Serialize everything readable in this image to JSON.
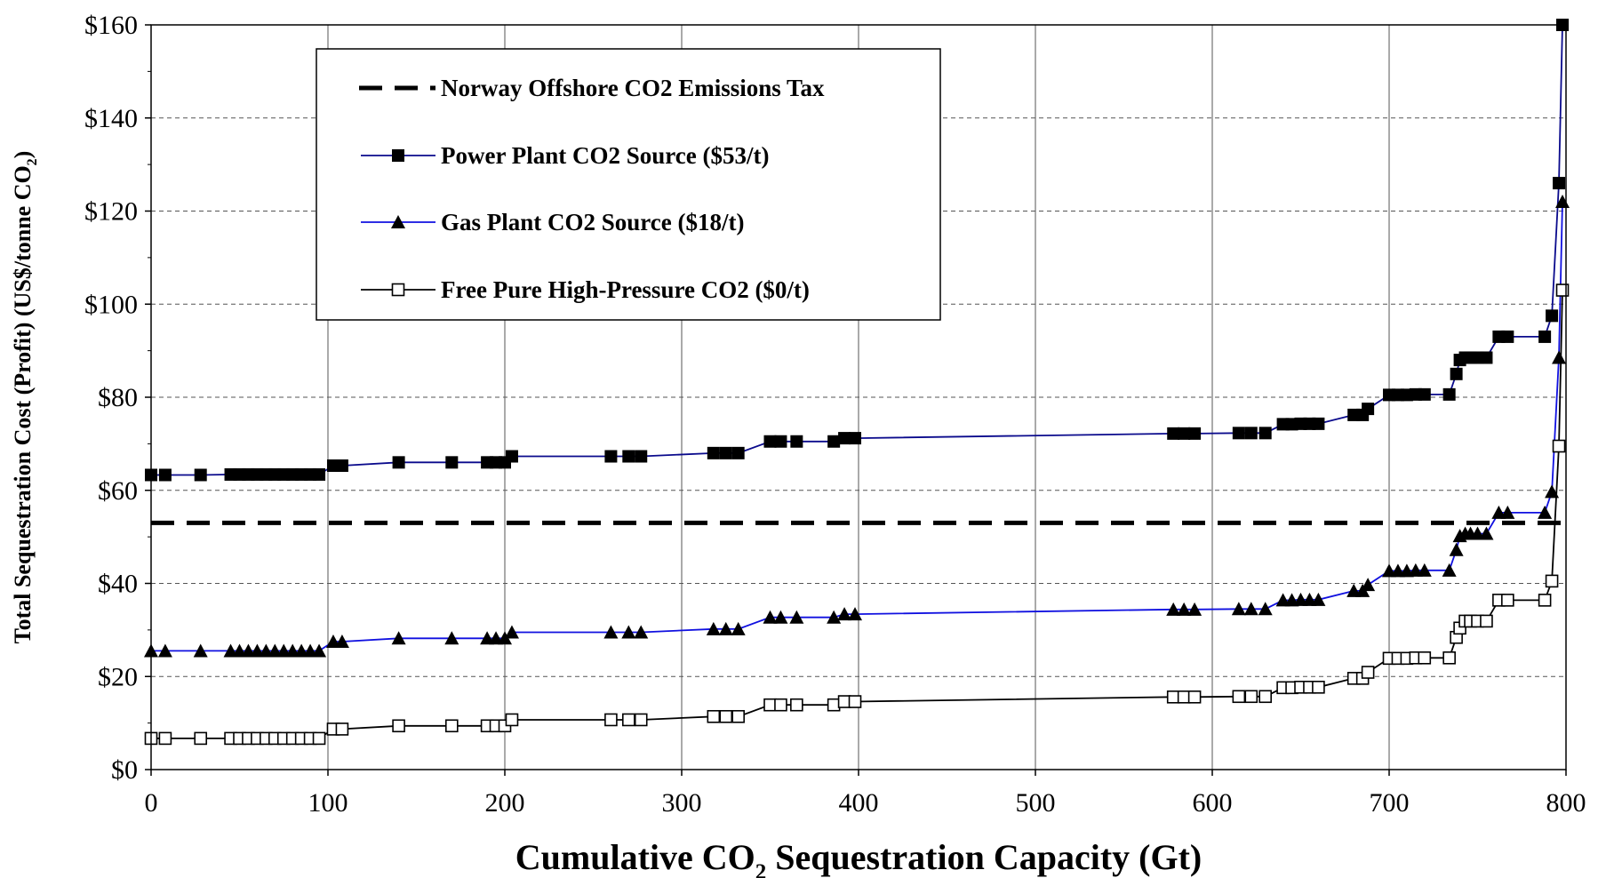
{
  "chart_data": {
    "type": "line",
    "title": "",
    "xlabel": {
      "prefix": "Cumulative CO",
      "sub": "2",
      "suffix": " Sequestration Capacity (Gt)"
    },
    "ylabel": {
      "prefix": "Total Sequestration Cost (Profit) (US$/tonne CO",
      "sub": "2",
      "suffix": ")"
    },
    "xlim": [
      0,
      800
    ],
    "ylim": [
      0,
      160
    ],
    "x_ticks": [
      0,
      100,
      200,
      300,
      400,
      500,
      600,
      700,
      800
    ],
    "x_tick_labels": [
      "0",
      "100",
      "200",
      "300",
      "400",
      "500",
      "600",
      "700",
      "800"
    ],
    "y_ticks": [
      0,
      20,
      40,
      60,
      80,
      100,
      120,
      140,
      160
    ],
    "y_tick_labels": [
      "$0",
      "$20",
      "$40",
      "$60",
      "$80",
      "$100",
      "$120",
      "$140",
      "$160"
    ],
    "grid": {
      "vertical": "solid",
      "horizontal": "dashed"
    },
    "legend_position": "top-left",
    "colors": {
      "power_line": "#0a0a8c",
      "gas_line": "#1010e0",
      "free_line": "#000000",
      "tax_line": "#000000"
    },
    "reference_line": {
      "name": "Norway Offshore CO2 Emissions Tax",
      "y": 53
    },
    "series": [
      {
        "name": "Power Plant CO2 Source ($53/t)",
        "marker": "filled-square",
        "x": [
          0,
          8,
          28,
          45,
          50,
          55,
          60,
          65,
          70,
          75,
          80,
          85,
          90,
          95,
          103,
          108,
          140,
          170,
          190,
          195,
          200,
          204,
          260,
          270,
          277,
          318,
          325,
          332,
          350,
          356,
          365,
          386,
          392,
          398,
          578,
          584,
          590,
          615,
          622,
          630,
          640,
          645,
          650,
          655,
          660,
          680,
          685,
          688,
          700,
          705,
          710,
          715,
          720,
          734,
          738,
          740,
          743,
          746,
          750,
          755,
          762,
          767,
          788,
          792,
          796,
          798
        ],
        "y": [
          63.3,
          63.3,
          63.3,
          63.4,
          63.4,
          63.4,
          63.4,
          63.4,
          63.4,
          63.4,
          63.4,
          63.4,
          63.4,
          63.4,
          65.3,
          65.3,
          66.0,
          66.0,
          66.0,
          66.0,
          66.0,
          67.3,
          67.3,
          67.3,
          67.3,
          68.0,
          68.0,
          68.0,
          70.5,
          70.5,
          70.5,
          70.5,
          71.2,
          71.2,
          72.2,
          72.2,
          72.2,
          72.3,
          72.3,
          72.3,
          74.2,
          74.2,
          74.3,
          74.3,
          74.3,
          76.2,
          76.2,
          77.5,
          80.5,
          80.5,
          80.5,
          80.6,
          80.6,
          80.6,
          85.0,
          88.0,
          88.5,
          88.5,
          88.5,
          88.5,
          93.0,
          93.0,
          93.0,
          97.5,
          126.0,
          160.0
        ]
      },
      {
        "name": "Gas Plant CO2 Source ($18/t)",
        "marker": "filled-triangle",
        "x": [
          0,
          8,
          28,
          45,
          50,
          55,
          60,
          65,
          70,
          75,
          80,
          85,
          90,
          95,
          103,
          108,
          140,
          170,
          190,
          195,
          200,
          204,
          260,
          270,
          277,
          318,
          325,
          332,
          350,
          356,
          365,
          386,
          392,
          398,
          578,
          584,
          590,
          615,
          622,
          630,
          640,
          645,
          650,
          655,
          660,
          680,
          685,
          688,
          700,
          705,
          710,
          715,
          720,
          734,
          738,
          740,
          743,
          746,
          750,
          755,
          762,
          767,
          788,
          792,
          796,
          798
        ],
        "y": [
          25.5,
          25.5,
          25.5,
          25.5,
          25.5,
          25.5,
          25.5,
          25.5,
          25.5,
          25.5,
          25.5,
          25.5,
          25.5,
          25.5,
          27.5,
          27.5,
          28.2,
          28.2,
          28.2,
          28.2,
          28.2,
          29.5,
          29.5,
          29.5,
          29.5,
          30.2,
          30.2,
          30.2,
          32.7,
          32.7,
          32.7,
          32.7,
          33.4,
          33.4,
          34.4,
          34.4,
          34.4,
          34.5,
          34.5,
          34.5,
          36.4,
          36.4,
          36.5,
          36.5,
          36.5,
          38.4,
          38.4,
          39.7,
          42.7,
          42.7,
          42.7,
          42.8,
          42.8,
          42.8,
          47.2,
          50.2,
          50.7,
          50.7,
          50.7,
          50.7,
          55.2,
          55.2,
          55.2,
          59.7,
          88.5,
          122.0
        ]
      },
      {
        "name": "Free Pure High-Pressure CO2 ($0/t)",
        "marker": "open-square",
        "x": [
          0,
          8,
          28,
          45,
          50,
          55,
          60,
          65,
          70,
          75,
          80,
          85,
          90,
          95,
          103,
          108,
          140,
          170,
          190,
          195,
          200,
          204,
          260,
          270,
          277,
          318,
          325,
          332,
          350,
          356,
          365,
          386,
          392,
          398,
          578,
          584,
          590,
          615,
          622,
          630,
          640,
          645,
          650,
          655,
          660,
          680,
          685,
          688,
          700,
          705,
          710,
          715,
          720,
          734,
          738,
          740,
          743,
          746,
          750,
          755,
          762,
          767,
          788,
          792,
          796,
          798
        ],
        "y": [
          6.7,
          6.7,
          6.7,
          6.7,
          6.7,
          6.7,
          6.7,
          6.7,
          6.7,
          6.7,
          6.7,
          6.7,
          6.7,
          6.7,
          8.7,
          8.7,
          9.4,
          9.4,
          9.4,
          9.4,
          9.4,
          10.7,
          10.7,
          10.7,
          10.7,
          11.4,
          11.4,
          11.4,
          13.9,
          13.9,
          13.9,
          13.9,
          14.6,
          14.6,
          15.6,
          15.6,
          15.6,
          15.7,
          15.7,
          15.7,
          17.6,
          17.6,
          17.7,
          17.7,
          17.7,
          19.6,
          19.6,
          20.9,
          23.9,
          23.9,
          23.9,
          24.0,
          24.0,
          24.0,
          28.4,
          30.4,
          31.9,
          31.9,
          31.9,
          31.9,
          36.4,
          36.4,
          36.4,
          40.5,
          69.5,
          103.0
        ]
      }
    ]
  }
}
